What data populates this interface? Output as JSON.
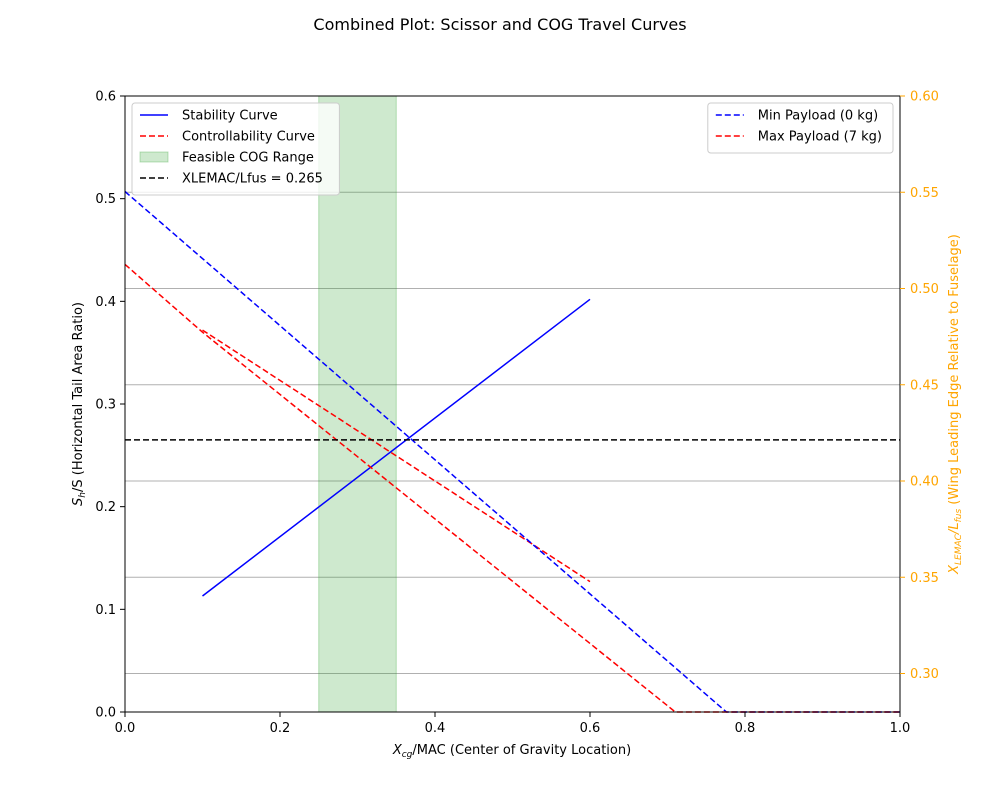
{
  "chart_data": {
    "type": "line",
    "title": "Combined Plot: Scissor and COG Travel Curves",
    "xlabel_main": "X",
    "xlabel_sub": "cg",
    "xlabel_rest": "/MAC (Center of Gravity Location)",
    "ylabel_main": "S",
    "ylabel_sub": "h",
    "ylabel_rest": "/S (Horizontal Tail Area Ratio)",
    "y2label_main": "X",
    "y2label_sub1": "LEMAC",
    "y2label_mid": "/L",
    "y2label_sub2": "fus",
    "y2label_rest": " (Wing Leading Edge Relative to Fuselage)",
    "xlim": [
      0,
      1
    ],
    "ylim": [
      0,
      0.6
    ],
    "y2lim": [
      0.28,
      0.6
    ],
    "x_ticks": [
      "0.0",
      "0.2",
      "0.4",
      "0.6",
      "0.8",
      "1.0"
    ],
    "y_ticks": [
      "0.0",
      "0.1",
      "0.2",
      "0.3",
      "0.4",
      "0.5",
      "0.6"
    ],
    "y2_ticks": [
      "0.30",
      "0.35",
      "0.40",
      "0.45",
      "0.50",
      "0.55",
      "0.60"
    ],
    "right_axis_color": "#ffa500",
    "grid": "horizontal lines at right-axis ticks",
    "feasible_range": {
      "x": [
        0.25,
        0.35
      ],
      "color": "#2ca02c",
      "label": "Feasible COG Range"
    },
    "xlemac_line": {
      "y": 0.265,
      "label": "XLEMAC/Lfus = 0.265",
      "color": "#000000"
    },
    "series": [
      {
        "name": "Stability Curve",
        "axis": "left",
        "style": "solid",
        "color": "#0000ff",
        "x": [
          0.1,
          0.6
        ],
        "y": [
          0.113,
          0.402
        ]
      },
      {
        "name": "Controllability Curve",
        "axis": "left",
        "style": "dashed",
        "color": "#ff0000",
        "x": [
          0.1,
          0.6
        ],
        "y": [
          0.372,
          0.127
        ]
      },
      {
        "name": "Min Payload (0 kg)",
        "axis": "right",
        "style": "dashed",
        "color": "#0000ff",
        "x": [
          0.0,
          0.776,
          1.0
        ],
        "y": [
          0.5504,
          0.28,
          0.28
        ]
      },
      {
        "name": "Max Payload (7 kg)",
        "axis": "right",
        "style": "dashed",
        "color": "#ff0000",
        "x": [
          0.0,
          0.1,
          0.71,
          1.0
        ],
        "y": [
          0.5125,
          0.4773,
          0.28,
          0.28
        ]
      }
    ],
    "legend_left": [
      "Stability Curve",
      "Controllability Curve",
      "Feasible COG Range",
      "XLEMAC/Lfus = 0.265"
    ],
    "legend_right": [
      "Min Payload (0 kg)",
      "Max Payload (7 kg)"
    ],
    "legend_placement": {
      "left_axis": "upper-left",
      "right_axis": "upper-right"
    }
  }
}
